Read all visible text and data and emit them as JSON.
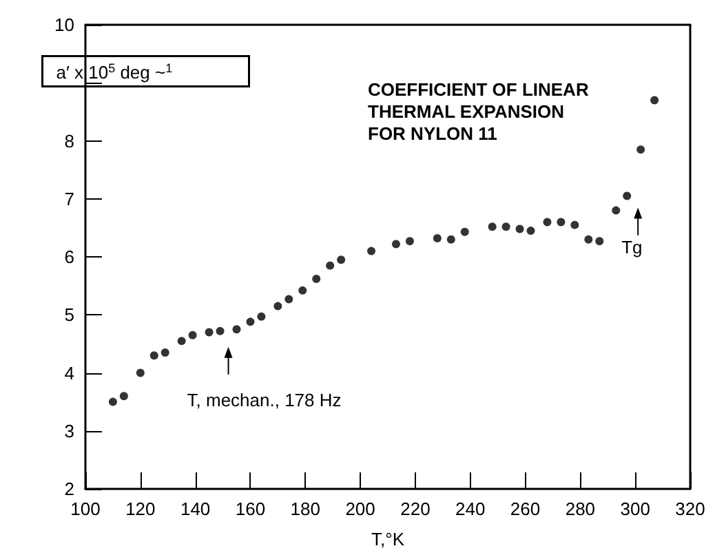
{
  "chart_data": {
    "type": "scatter",
    "title": "COEFFICIENT OF LINEAR\nTHERMAL EXPANSION\nFOR NYLON 11",
    "xlabel": "T,°K",
    "ylabel": "a′ x 10$^{5}$ deg ~$^{1}$",
    "x": [
      110,
      114,
      120,
      125,
      129,
      135,
      139,
      145,
      149,
      155,
      160,
      164,
      170,
      174,
      179,
      184,
      189,
      193,
      204,
      213,
      218,
      228,
      233,
      238,
      248,
      253,
      258,
      262,
      268,
      273,
      278,
      283,
      287,
      293,
      297,
      302,
      307
    ],
    "values": [
      3.5,
      3.6,
      4.0,
      4.3,
      4.35,
      4.55,
      4.65,
      4.7,
      4.72,
      4.75,
      4.88,
      4.97,
      5.15,
      5.27,
      5.42,
      5.62,
      5.85,
      5.95,
      6.1,
      6.22,
      6.27,
      6.32,
      6.3,
      6.43,
      6.52,
      6.52,
      6.48,
      6.45,
      6.6,
      6.6,
      6.55,
      6.3,
      6.27,
      6.8,
      7.05,
      7.85,
      8.7
    ],
    "color": "#000000",
    "marker": "circle",
    "grid": false,
    "xlim": [
      100,
      320
    ],
    "xticks": [
      100,
      120,
      140,
      160,
      180,
      200,
      220,
      240,
      260,
      280,
      300,
      320
    ],
    "ylim": [
      2,
      10
    ],
    "yticks": [
      2,
      3,
      4,
      5,
      6,
      7,
      8,
      {
        "value": 9,
        "label": null
      },
      10
    ],
    "annotations": [
      {
        "text": "T, mechan., 178 Hz",
        "x": 152,
        "y": 4.4
      },
      {
        "text": "Tg",
        "x": 301,
        "y": 6.8
      }
    ]
  }
}
